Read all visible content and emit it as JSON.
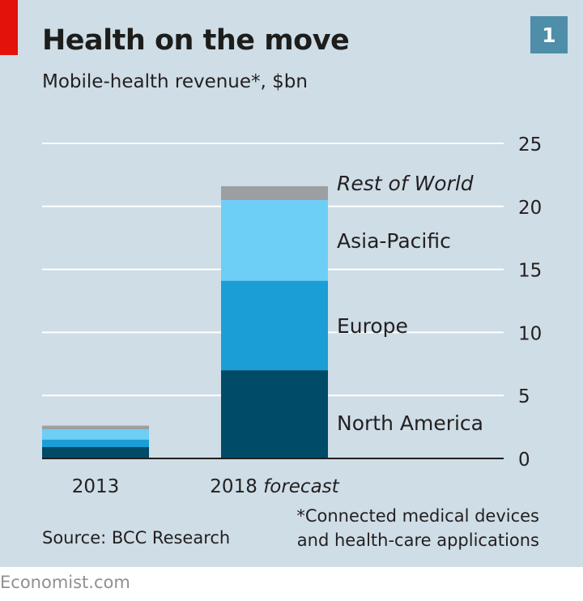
{
  "header": {
    "title": "Health on the move",
    "subtitle": "Mobile-health revenue*, $bn",
    "badge": "1"
  },
  "chart_data": {
    "type": "bar",
    "stacked": true,
    "title": "Health on the move",
    "subtitle": "Mobile-health revenue*, $bn",
    "categories": [
      {
        "label": "2013",
        "italic_suffix": ""
      },
      {
        "label": "2018 ",
        "italic_suffix": "forecast"
      }
    ],
    "series": [
      {
        "name": "North America",
        "italic": false,
        "color": "#004b68",
        "values": [
          0.9,
          7.0
        ]
      },
      {
        "name": "Europe",
        "italic": false,
        "color": "#1b9ed6",
        "values": [
          0.6,
          7.1
        ]
      },
      {
        "name": "Asia-Pacific",
        "italic": false,
        "color": "#6ecff6",
        "values": [
          0.8,
          6.4
        ]
      },
      {
        "name": "Rest of World",
        "italic": true,
        "color": "#9c9fa2",
        "values": [
          0.3,
          1.1
        ]
      }
    ],
    "ylim": [
      0,
      25
    ],
    "yticks": [
      0,
      5,
      10,
      15,
      20,
      25
    ],
    "axis_side": "right",
    "grid": true
  },
  "footer": {
    "source": "Source: BCC Research",
    "footnote_line1": "*Connected medical devices",
    "footnote_line2": "and health-care applications",
    "credit": "Economist.com"
  }
}
